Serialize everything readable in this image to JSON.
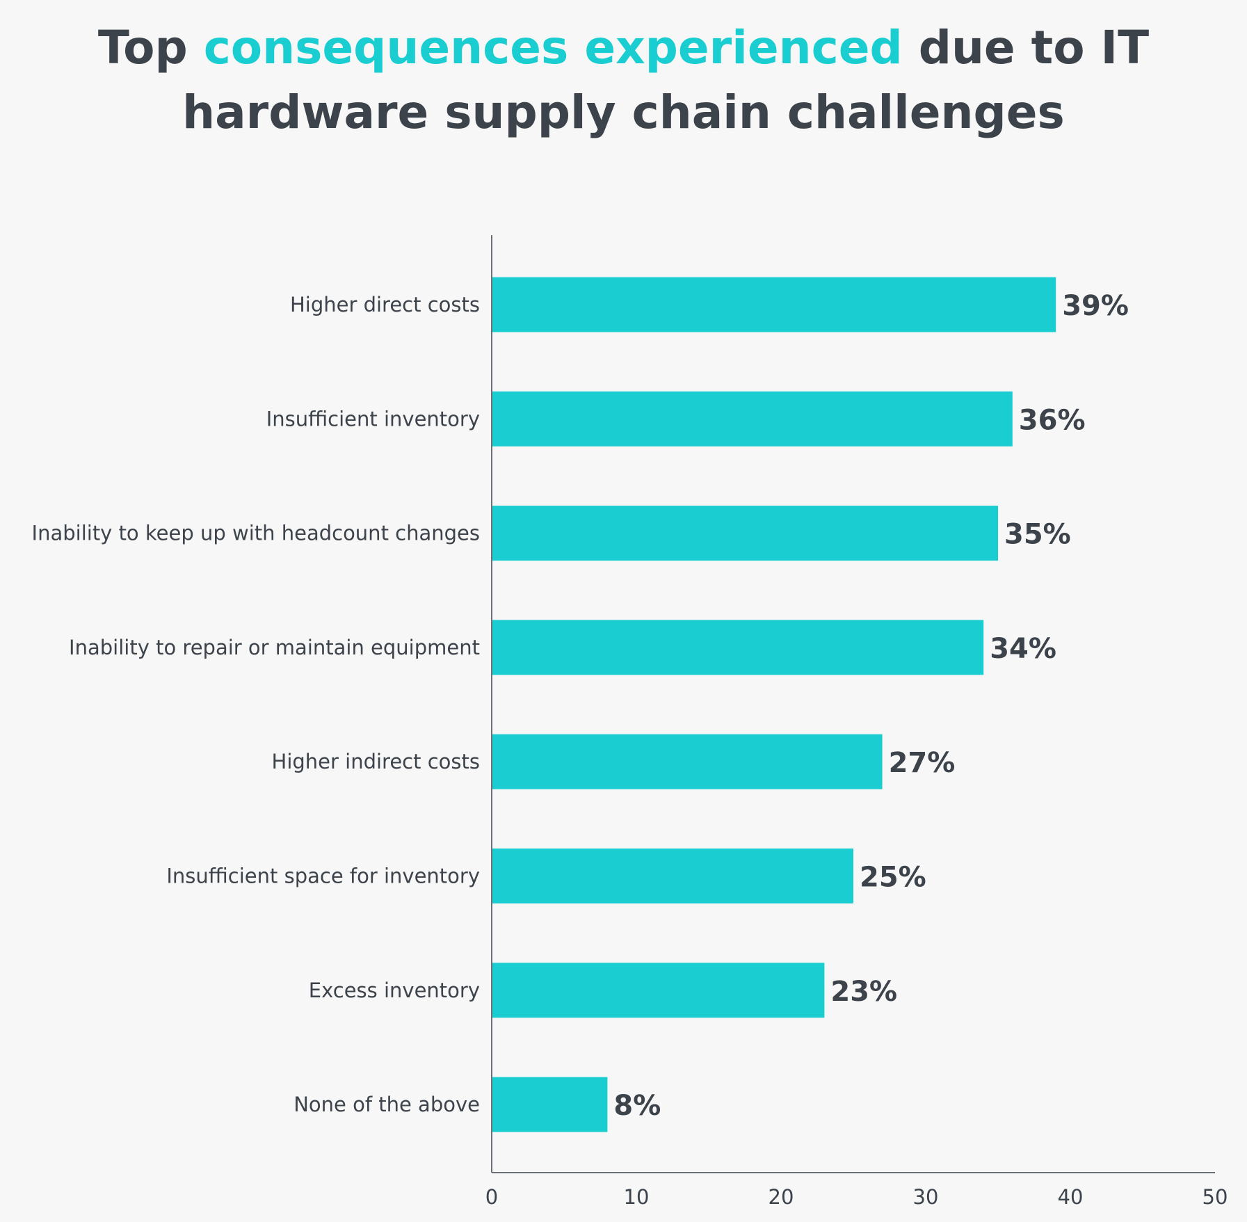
{
  "title": {
    "part1": "Top ",
    "highlight": "consequences experienced",
    "part2": " due to IT hardware supply chain challenges"
  },
  "colors": {
    "bar": "#19cdd0",
    "accent": "#19cdd0",
    "text": "#3d434b",
    "axis": "#6b7076",
    "background": "#f7f7f7"
  },
  "chart_data": {
    "type": "bar",
    "orientation": "horizontal",
    "title": "Top consequences experienced due to IT hardware supply chain challenges",
    "xlabel": "",
    "ylabel": "",
    "categories": [
      "Higher direct costs",
      "Insufficient inventory",
      "Inability to keep up with headcount changes",
      "Inability to repair or maintain equipment",
      "Higher indirect costs",
      "Insufficient space for inventory",
      "Excess inventory",
      "None of the above"
    ],
    "values": [
      39,
      36,
      35,
      34,
      27,
      25,
      23,
      8
    ],
    "value_labels": [
      "39%",
      "36%",
      "35%",
      "34%",
      "27%",
      "25%",
      "23%",
      "8%"
    ],
    "xlim": [
      0,
      50
    ],
    "xticks": [
      0,
      10,
      20,
      30,
      40,
      50
    ],
    "grid": false
  }
}
